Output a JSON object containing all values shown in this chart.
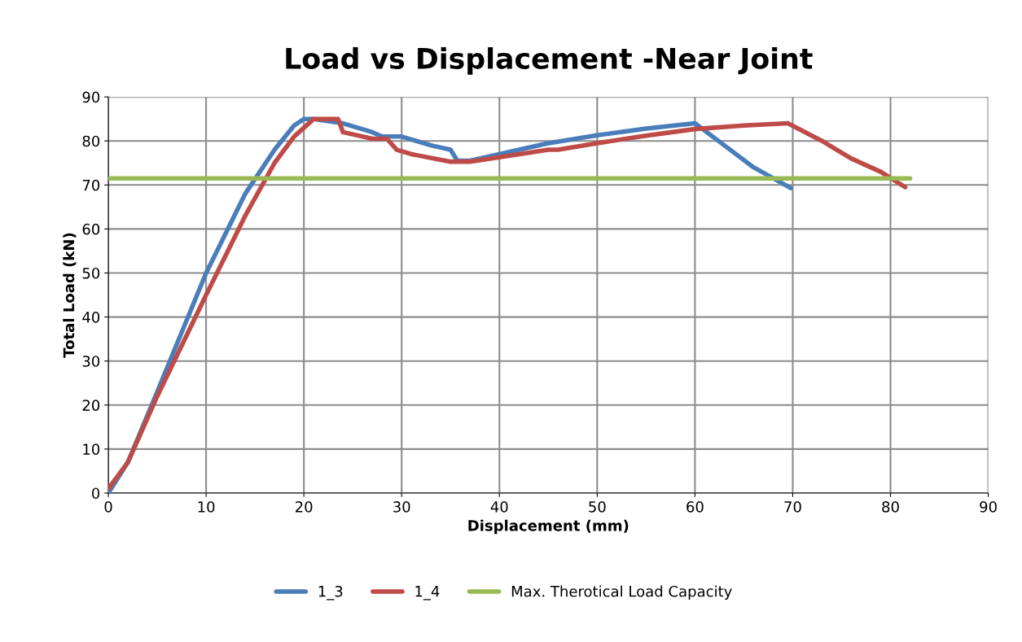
{
  "chart_data": {
    "type": "line",
    "title": "Load vs Displacement -Near Joint",
    "xlabel": "Displacement (mm)",
    "ylabel": "Total Load (kN)",
    "xlim": [
      0,
      90
    ],
    "xticks": [
      0,
      10,
      20,
      30,
      40,
      50,
      60,
      70,
      80,
      90
    ],
    "ylim": [
      0,
      90
    ],
    "yticks": [
      0,
      10,
      20,
      30,
      40,
      50,
      60,
      70,
      80,
      90
    ],
    "grid": true,
    "legend": "bottom",
    "marker": "none",
    "line_style": "solid",
    "series": [
      {
        "name": "1_3",
        "color": "#4a7ebb",
        "x": [
          0,
          2,
          5,
          10,
          14,
          17,
          19,
          20,
          21,
          24,
          27,
          28,
          30,
          33,
          35,
          35.7,
          37,
          40,
          42,
          45,
          50,
          55,
          60,
          63,
          66,
          69.8
        ],
        "values": [
          0,
          7,
          23,
          50,
          68,
          78,
          83.5,
          85,
          85,
          84,
          82,
          81,
          81,
          79,
          78,
          75.5,
          75.5,
          77,
          78,
          79.5,
          81.3,
          82.8,
          84,
          79,
          74,
          69.3
        ]
      },
      {
        "name": "1_4",
        "color": "#be4b48",
        "x": [
          0,
          2,
          5,
          10,
          14,
          17,
          19,
          20.5,
          21,
          23.5,
          24,
          27,
          28.5,
          29.5,
          31,
          35,
          37,
          40,
          45,
          46,
          50,
          55,
          60,
          65,
          69.5,
          73,
          76,
          79,
          81.5
        ],
        "values": [
          1,
          7,
          22,
          45,
          63,
          75,
          81,
          84,
          85,
          85,
          82,
          80.5,
          80.5,
          78,
          77,
          75.3,
          75.3,
          76.3,
          78,
          78,
          79.5,
          81.2,
          82.7,
          83.5,
          84,
          80,
          76,
          73,
          69.5
        ]
      },
      {
        "name": "Max. Therotical Load Capacity",
        "color": "#98b954",
        "x": [
          0,
          82
        ],
        "values": [
          71.5,
          71.5
        ]
      }
    ]
  }
}
